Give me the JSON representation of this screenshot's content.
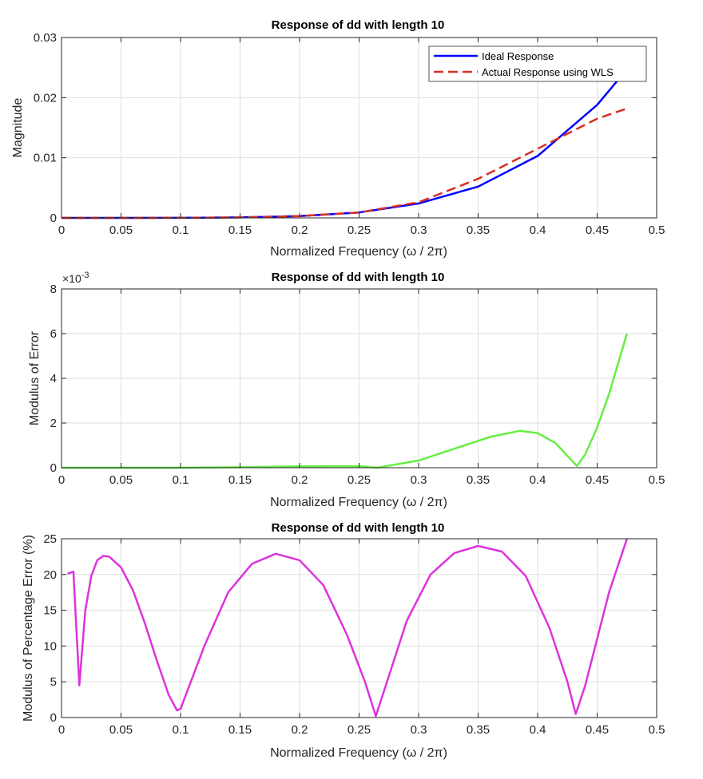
{
  "chart_data": [
    {
      "type": "line",
      "title": "Response of dd with length 10",
      "xlabel": "Normalized Frequency (ω / 2π)",
      "ylabel": "Magnitude",
      "xlim": [
        0,
        0.5
      ],
      "ylim": [
        0,
        0.03
      ],
      "xticks": [
        "0",
        "0.05",
        "0.1",
        "0.15",
        "0.2",
        "0.25",
        "0.3",
        "0.35",
        "0.4",
        "0.45",
        "0.5"
      ],
      "yticks": [
        "0",
        "0.01",
        "0.02",
        "0.03"
      ],
      "grid": true,
      "legend": "top-right",
      "series": [
        {
          "name": "Ideal Response",
          "color": "#0000ff",
          "dash": "solid",
          "x": [
            0,
            0.05,
            0.1,
            0.15,
            0.2,
            0.25,
            0.3,
            0.35,
            0.4,
            0.45,
            0.475
          ],
          "y": [
            0,
            0,
            1e-05,
            8e-05,
            0.0003,
            0.0009,
            0.0024,
            0.0052,
            0.0103,
            0.0188,
            0.0247
          ]
        },
        {
          "name": "Actual Response using WLS",
          "color": "#d62f26",
          "dash": "dashed",
          "x": [
            0,
            0.05,
            0.1,
            0.15,
            0.2,
            0.25,
            0.3,
            0.35,
            0.4,
            0.45,
            0.475
          ],
          "y": [
            0,
            0,
            1e-05,
            8e-05,
            0.0003,
            0.0009,
            0.0026,
            0.0065,
            0.0115,
            0.0165,
            0.0182
          ]
        }
      ]
    },
    {
      "type": "line",
      "title": "Response of dd with length 10",
      "xlabel": "Normalized Frequency (ω / 2π)",
      "ylabel": "Modulus of Error",
      "xlim": [
        0,
        0.5
      ],
      "ylim": [
        0,
        8
      ],
      "y_multiplier": "×10",
      "y_exponent": "-3",
      "xticks": [
        "0",
        "0.05",
        "0.1",
        "0.15",
        "0.2",
        "0.25",
        "0.3",
        "0.35",
        "0.4",
        "0.45",
        "0.5"
      ],
      "yticks": [
        "0",
        "2",
        "4",
        "6",
        "8"
      ],
      "grid": true,
      "series": [
        {
          "color": "#66ee44",
          "x": [
            0,
            0.1,
            0.15,
            0.2,
            0.25,
            0.265,
            0.3,
            0.33,
            0.36,
            0.385,
            0.4,
            0.415,
            0.433,
            0.44,
            0.45,
            0.46,
            0.475
          ],
          "y": [
            0,
            0,
            0.02,
            0.06,
            0.07,
            0.0,
            0.32,
            0.85,
            1.38,
            1.65,
            1.55,
            1.1,
            0.08,
            0.6,
            1.8,
            3.3,
            6.0
          ]
        }
      ]
    },
    {
      "type": "line",
      "title": "Response of dd with length 10",
      "xlabel": "Normalized Frequency (ω / 2π)",
      "ylabel": "Modulus of Percentage Error (%)",
      "xlim": [
        0,
        0.5
      ],
      "ylim": [
        0,
        25
      ],
      "xticks": [
        "0",
        "0.05",
        "0.1",
        "0.15",
        "0.2",
        "0.25",
        "0.3",
        "0.35",
        "0.4",
        "0.45",
        "0.5"
      ],
      "yticks": [
        "0",
        "5",
        "10",
        "15",
        "20",
        "25"
      ],
      "grid": true,
      "series": [
        {
          "color": "#dd33dd",
          "x": [
            0.005,
            0.01,
            0.015,
            0.02,
            0.025,
            0.03,
            0.035,
            0.04,
            0.05,
            0.06,
            0.07,
            0.08,
            0.09,
            0.097,
            0.1,
            0.12,
            0.14,
            0.16,
            0.18,
            0.2,
            0.22,
            0.24,
            0.255,
            0.264,
            0.275,
            0.29,
            0.31,
            0.33,
            0.35,
            0.37,
            0.39,
            0.41,
            0.425,
            0.432,
            0.44,
            0.45,
            0.46,
            0.475
          ],
          "y": [
            20.1,
            20.4,
            4.5,
            15.0,
            19.8,
            22.0,
            22.6,
            22.5,
            21.0,
            17.8,
            13.2,
            8.0,
            3.2,
            1.0,
            1.2,
            10.0,
            17.5,
            21.5,
            22.9,
            22.0,
            18.5,
            11.5,
            5.0,
            0.2,
            5.8,
            13.5,
            20.0,
            23.0,
            24.0,
            23.2,
            19.8,
            12.5,
            5.0,
            0.5,
            4.5,
            11.0,
            17.5,
            25.0
          ]
        }
      ]
    }
  ]
}
